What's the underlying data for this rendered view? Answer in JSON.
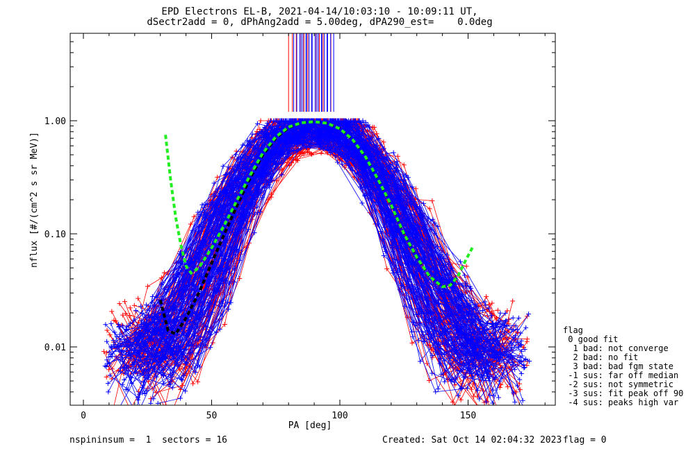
{
  "header": {
    "title_line1": "EPD Electrons EL-B, 2021-04-14/10:03:10 - 10:09:11 UT,",
    "title_line2": "dSectr2add = 0, dPhAng2add = 5.00deg, dPA290_est=    0.0deg"
  },
  "chart_data": {
    "type": "line",
    "xlabel": "PA [deg]",
    "ylabel": "nflux [#/(cm^2 s sr MeV)]",
    "xlim": [
      -5,
      185
    ],
    "ylim": [
      0.003,
      6.0
    ],
    "yscale": "log",
    "x_ticks": [
      0,
      50,
      100,
      150
    ],
    "x_tick_labels": [
      "0",
      "50",
      "100",
      "150"
    ],
    "y_ticks": [
      0.01,
      0.1,
      1.0
    ],
    "y_tick_labels": [
      "0.01",
      "0.10",
      "1.00"
    ],
    "colors": {
      "red_series": "#ff0000",
      "blue_series": "#0000ff",
      "fit_green": "#22ee22",
      "fit_black": "#000000"
    },
    "fit_green": {
      "x": [
        32,
        34,
        36,
        38,
        40,
        42,
        45,
        50,
        55,
        60,
        65,
        70,
        75,
        80,
        85,
        90,
        95,
        100,
        105,
        110,
        115,
        120,
        125,
        130,
        135,
        140,
        143,
        146,
        149,
        152
      ],
      "y": [
        0.75,
        0.3,
        0.14,
        0.08,
        0.052,
        0.045,
        0.05,
        0.075,
        0.12,
        0.2,
        0.33,
        0.52,
        0.72,
        0.88,
        0.96,
        0.98,
        0.95,
        0.85,
        0.68,
        0.48,
        0.3,
        0.18,
        0.1,
        0.062,
        0.042,
        0.034,
        0.035,
        0.042,
        0.058,
        0.078
      ]
    },
    "fit_black": {
      "x": [
        30,
        33,
        36,
        40,
        45,
        50,
        55,
        60,
        65,
        70,
        75,
        80,
        85,
        90,
        95,
        100,
        105,
        110,
        115,
        120,
        125,
        130,
        135,
        140,
        143,
        146
      ],
      "y": [
        0.026,
        0.014,
        0.013,
        0.018,
        0.03,
        0.055,
        0.1,
        0.18,
        0.31,
        0.5,
        0.7,
        0.87,
        0.96,
        0.98,
        0.95,
        0.85,
        0.68,
        0.48,
        0.3,
        0.18,
        0.1,
        0.062,
        0.042,
        0.034,
        0.035,
        0.042
      ]
    },
    "vertical_lines": {
      "red_x": [
        80,
        81.5,
        83,
        84.5,
        86,
        87.5,
        89,
        90.5,
        92,
        93.5,
        95,
        96.5
      ],
      "blue_x": [
        82,
        83.2,
        84.4,
        85.6,
        86.8,
        88,
        89.2,
        90.4,
        91.6,
        92.8,
        94,
        95.2,
        96.4,
        97.6,
        85,
        87,
        89,
        91,
        93,
        95
      ],
      "y_top": 6.0,
      "y_bottom": 1.2
    }
  },
  "legend": {
    "title": "flag",
    "items": [
      " 0 good fit",
      "  1 bad: not converge",
      "  2 bad: no fit",
      "  3 bad: bad fgm state",
      " -1 sus: far off median",
      " -2 sus: not symmetric",
      " -3 sus: fit peak off 90",
      " -4 sus: peaks high var"
    ]
  },
  "footer": {
    "left": "nspininsum =  1  sectors = 16",
    "created": "Created: Sat Oct 14 02:04:32 2023",
    "flag": "flag = 0"
  }
}
